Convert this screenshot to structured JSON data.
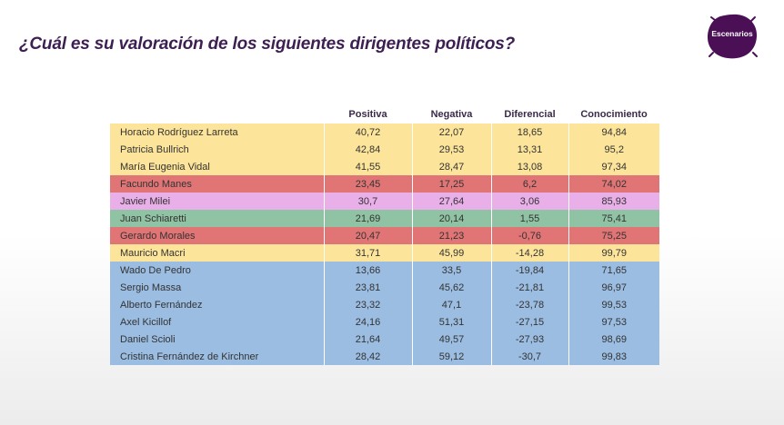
{
  "title": "¿Cuál es su valoración de los siguientes dirigentes políticos?",
  "brand": {
    "logo_text": "Escenarios"
  },
  "colors": {
    "yellow": "#fce59a",
    "red": "#e17575",
    "violet": "#e9afe8",
    "green": "#8fc3a3",
    "blue": "#9bbde2",
    "title": "#3d1f52",
    "logo": "#4a0f55"
  },
  "chart_data": {
    "type": "table",
    "columns": [
      "",
      "Positiva",
      "Negativa",
      "Diferencial",
      "Conocimiento"
    ],
    "rows": [
      {
        "name": "Horacio Rodríguez Larreta",
        "positiva": "40,72",
        "negativa": "22,07",
        "diferencial": "18,65",
        "conocimiento": "94,84",
        "color": "yellow"
      },
      {
        "name": "Patricia Bullrich",
        "positiva": "42,84",
        "negativa": "29,53",
        "diferencial": "13,31",
        "conocimiento": "95,2",
        "color": "yellow"
      },
      {
        "name": "María Eugenia Vidal",
        "positiva": "41,55",
        "negativa": "28,47",
        "diferencial": "13,08",
        "conocimiento": "97,34",
        "color": "yellow"
      },
      {
        "name": "Facundo Manes",
        "positiva": "23,45",
        "negativa": "17,25",
        "diferencial": "6,2",
        "conocimiento": "74,02",
        "color": "red"
      },
      {
        "name": "Javier Milei",
        "positiva": "30,7",
        "negativa": "27,64",
        "diferencial": "3,06",
        "conocimiento": "85,93",
        "color": "violet"
      },
      {
        "name": "Juan Schiaretti",
        "positiva": "21,69",
        "negativa": "20,14",
        "diferencial": "1,55",
        "conocimiento": "75,41",
        "color": "green"
      },
      {
        "name": "Gerardo Morales",
        "positiva": "20,47",
        "negativa": "21,23",
        "diferencial": "-0,76",
        "conocimiento": "75,25",
        "color": "red"
      },
      {
        "name": "Mauricio Macri",
        "positiva": "31,71",
        "negativa": "45,99",
        "diferencial": "-14,28",
        "conocimiento": "99,79",
        "color": "yellow"
      },
      {
        "name": "Wado De Pedro",
        "positiva": "13,66",
        "negativa": "33,5",
        "diferencial": "-19,84",
        "conocimiento": "71,65",
        "color": "blue"
      },
      {
        "name": "Sergio Massa",
        "positiva": "23,81",
        "negativa": "45,62",
        "diferencial": "-21,81",
        "conocimiento": "96,97",
        "color": "blue"
      },
      {
        "name": "Alberto Fernández",
        "positiva": "23,32",
        "negativa": "47,1",
        "diferencial": "-23,78",
        "conocimiento": "99,53",
        "color": "blue"
      },
      {
        "name": "Axel Kicillof",
        "positiva": "24,16",
        "negativa": "51,31",
        "diferencial": "-27,15",
        "conocimiento": "97,53",
        "color": "blue"
      },
      {
        "name": "Daniel Scioli",
        "positiva": "21,64",
        "negativa": "49,57",
        "diferencial": "-27,93",
        "conocimiento": "98,69",
        "color": "blue"
      },
      {
        "name": "Cristina Fernández de Kirchner",
        "positiva": "28,42",
        "negativa": "59,12",
        "diferencial": "-30,7",
        "conocimiento": "99,83",
        "color": "blue"
      }
    ]
  }
}
